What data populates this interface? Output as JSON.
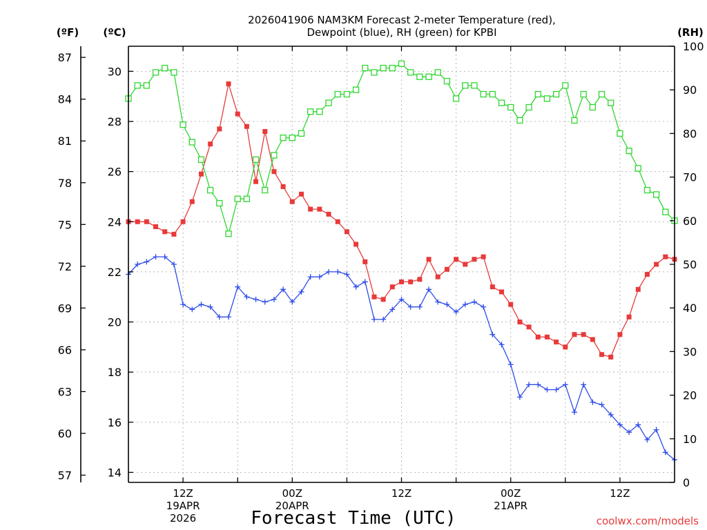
{
  "chart_data": {
    "type": "line",
    "title": [
      "2026041906 NAM3KM Forecast 2-meter Temperature (red),",
      "Dewpoint (blue), RH (green) for KPBI"
    ],
    "xlabel": "Forecast Time (UTC)",
    "credit": "coolwx.com/models",
    "left_unit_f": "(ºF)",
    "left_unit_c": "(ºC)",
    "right_unit": "(RH)",
    "x_start_hour": 6,
    "x_end_hour": 66,
    "x_ticks": [
      {
        "hour": 12,
        "lines": [
          "12Z",
          "19APR",
          "2026"
        ]
      },
      {
        "hour": 24,
        "lines": [
          "00Z",
          "20APR"
        ]
      },
      {
        "hour": 36,
        "lines": [
          "12Z"
        ]
      },
      {
        "hour": 48,
        "lines": [
          "00Z",
          "21APR"
        ]
      },
      {
        "hour": 60,
        "lines": [
          "12Z"
        ]
      }
    ],
    "celsius_range": [
      13.6,
      31.0
    ],
    "celsius_ticks": [
      14,
      16,
      18,
      20,
      22,
      24,
      26,
      28,
      30
    ],
    "fahrenheit_ticks": [
      57,
      60,
      63,
      66,
      69,
      72,
      75,
      78,
      81,
      84,
      87
    ],
    "rh_range": [
      0,
      100
    ],
    "rh_ticks": [
      0,
      10,
      20,
      30,
      40,
      50,
      60,
      70,
      80,
      90,
      100
    ],
    "hours": [
      6,
      7,
      8,
      9,
      10,
      11,
      12,
      13,
      14,
      15,
      16,
      17,
      18,
      19,
      20,
      21,
      22,
      23,
      24,
      25,
      26,
      27,
      28,
      29,
      30,
      31,
      32,
      33,
      34,
      35,
      36,
      37,
      38,
      39,
      40,
      41,
      42,
      43,
      44,
      45,
      46,
      47,
      48,
      49,
      50,
      51,
      52,
      53,
      54,
      55,
      56,
      57,
      58,
      59,
      60,
      61,
      62,
      63,
      64,
      65,
      66
    ],
    "series": [
      {
        "name": "2-meter Temperature",
        "units": "C",
        "color": "#e83a3a",
        "marker": "filled-square",
        "values": [
          24.0,
          24.0,
          24.0,
          23.8,
          23.6,
          23.5,
          24.0,
          24.8,
          25.9,
          27.1,
          27.7,
          29.5,
          28.3,
          27.8,
          25.6,
          27.6,
          26.0,
          25.4,
          24.8,
          25.1,
          24.5,
          24.5,
          24.3,
          24.0,
          23.6,
          23.1,
          22.4,
          21.0,
          20.9,
          21.4,
          21.6,
          21.6,
          21.7,
          22.5,
          21.8,
          22.1,
          22.5,
          22.3,
          22.5,
          22.6,
          21.4,
          21.2,
          20.7,
          20.0,
          19.8,
          19.4,
          19.4,
          19.2,
          19.0,
          19.5,
          19.5,
          19.3,
          18.7,
          18.6,
          19.5,
          20.2,
          21.3,
          21.9,
          22.3,
          22.6,
          22.5
        ]
      },
      {
        "name": "Dewpoint",
        "units": "C",
        "color": "#2d4ce8",
        "marker": "plus",
        "values": [
          21.9,
          22.3,
          22.4,
          22.6,
          22.6,
          22.3,
          20.7,
          20.5,
          20.7,
          20.6,
          20.2,
          20.2,
          21.4,
          21.0,
          20.9,
          20.8,
          20.9,
          21.3,
          20.8,
          21.2,
          21.8,
          21.8,
          22.0,
          22.0,
          21.9,
          21.4,
          21.6,
          20.1,
          20.1,
          20.5,
          20.9,
          20.6,
          20.6,
          21.3,
          20.8,
          20.7,
          20.4,
          20.7,
          20.8,
          20.6,
          19.5,
          19.1,
          18.3,
          17.0,
          17.5,
          17.5,
          17.3,
          17.3,
          17.5,
          16.4,
          17.5,
          16.8,
          16.7,
          16.3,
          15.9,
          15.6,
          15.9,
          15.3,
          15.7,
          14.8,
          14.5
        ]
      },
      {
        "name": "RH",
        "units": "%",
        "color": "#2fd62f",
        "marker": "open-square",
        "values": [
          88,
          91,
          91,
          94,
          95,
          94,
          82,
          78,
          74,
          67,
          64,
          57,
          65,
          65,
          74,
          67,
          75,
          79,
          79,
          80,
          85,
          85,
          87,
          89,
          89,
          90,
          95,
          94,
          95,
          95,
          96,
          94,
          93,
          93,
          94,
          92,
          88,
          91,
          91,
          89,
          89,
          87,
          86,
          83,
          86,
          89,
          88,
          89,
          91,
          83,
          89,
          86,
          89,
          87,
          80,
          76,
          72,
          67,
          66,
          62,
          60
        ]
      }
    ]
  }
}
